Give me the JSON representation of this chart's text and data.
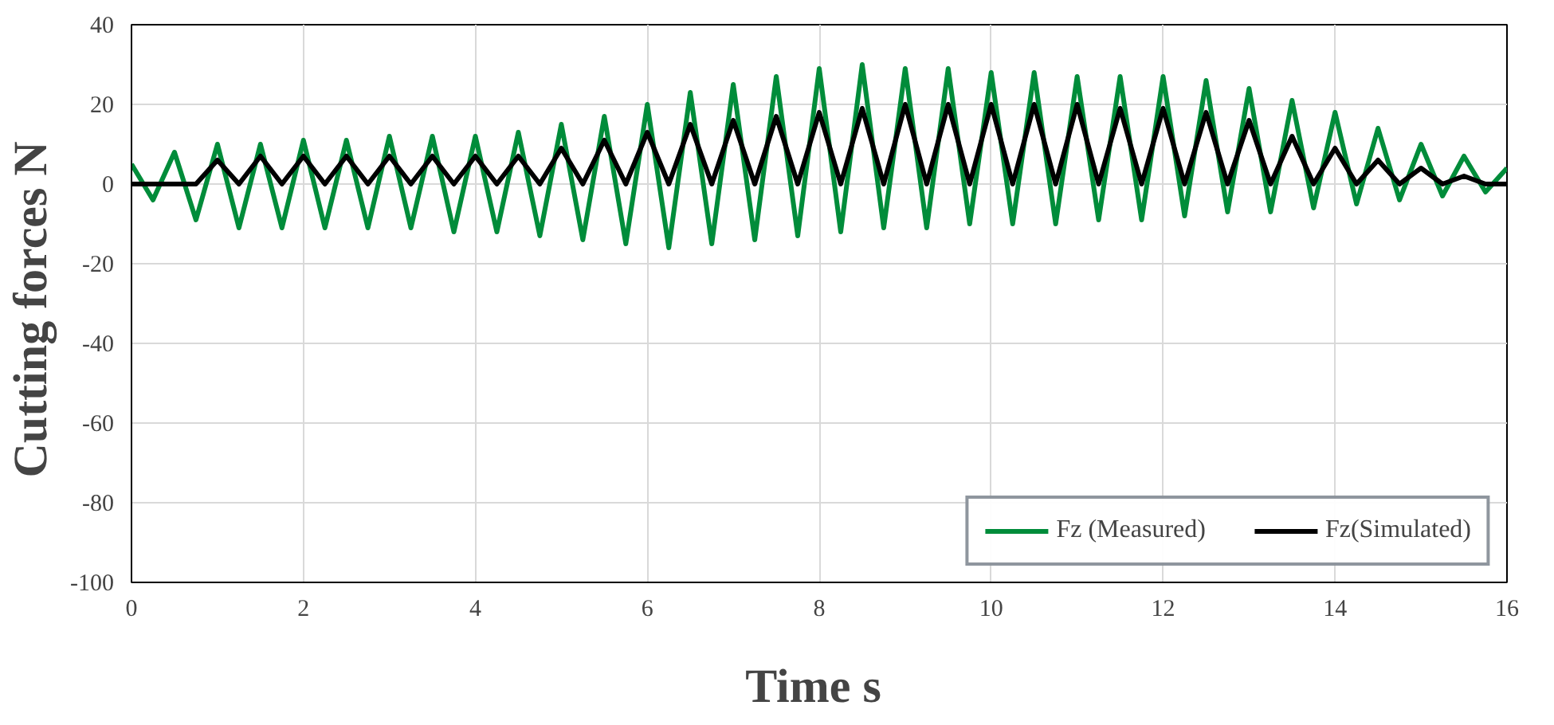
{
  "chart_data": {
    "type": "line",
    "xlabel": "Time  s",
    "ylabel": "Cutting forces  N",
    "x": [
      0,
      0.25,
      0.5,
      0.75,
      1,
      1.25,
      1.5,
      1.75,
      2,
      2.25,
      2.5,
      2.75,
      3,
      3.25,
      3.5,
      3.75,
      4,
      4.25,
      4.5,
      4.75,
      5,
      5.25,
      5.5,
      5.75,
      6,
      6.25,
      6.5,
      6.75,
      7,
      7.25,
      7.5,
      7.75,
      8,
      8.25,
      8.5,
      8.75,
      9,
      9.25,
      9.5,
      9.75,
      10,
      10.25,
      10.5,
      10.75,
      11,
      11.25,
      11.5,
      11.75,
      12,
      12.25,
      12.5,
      12.75,
      13,
      13.25,
      13.5,
      13.75,
      14,
      14.25,
      14.5,
      14.75,
      15,
      15.25,
      15.5,
      15.75,
      16
    ],
    "series": [
      {
        "name": "Fz (Measured)",
        "color": "#008c3a",
        "values": [
          5,
          -4,
          8,
          -9,
          10,
          -11,
          10,
          -11,
          11,
          -11,
          11,
          -11,
          12,
          -11,
          12,
          -12,
          12,
          -12,
          13,
          -13,
          15,
          -14,
          17,
          -15,
          20,
          -16,
          23,
          -15,
          25,
          -14,
          27,
          -13,
          29,
          -12,
          30,
          -11,
          29,
          -11,
          29,
          -10,
          28,
          -10,
          28,
          -10,
          27,
          -9,
          27,
          -9,
          27,
          -8,
          26,
          -7,
          24,
          -7,
          21,
          -6,
          18,
          -5,
          14,
          -4,
          10,
          -3,
          7,
          -2,
          4
        ]
      },
      {
        "name": "Fz(Simulated)",
        "color": "#000000",
        "values": [
          0,
          0,
          0,
          0,
          6,
          0,
          7,
          0,
          7,
          0,
          7,
          0,
          7,
          0,
          7,
          0,
          7,
          0,
          7,
          0,
          9,
          0,
          11,
          0,
          13,
          0,
          15,
          0,
          16,
          0,
          17,
          0,
          18,
          0,
          19,
          0,
          20,
          0,
          20,
          0,
          20,
          0,
          20,
          0,
          20,
          0,
          19,
          0,
          19,
          0,
          18,
          0,
          16,
          0,
          12,
          0,
          9,
          0,
          6,
          0,
          4,
          0,
          2,
          0,
          0
        ]
      }
    ],
    "xlim": [
      0,
      16
    ],
    "xticks": [
      0,
      2,
      4,
      6,
      8,
      10,
      12,
      14,
      16
    ],
    "ylim": [
      -100,
      40
    ],
    "yticks": [
      -100,
      -80,
      -60,
      -40,
      -20,
      0,
      20,
      40
    ],
    "grid": true,
    "legend": "bottom right",
    "marker": "none",
    "line_style": "solid"
  }
}
